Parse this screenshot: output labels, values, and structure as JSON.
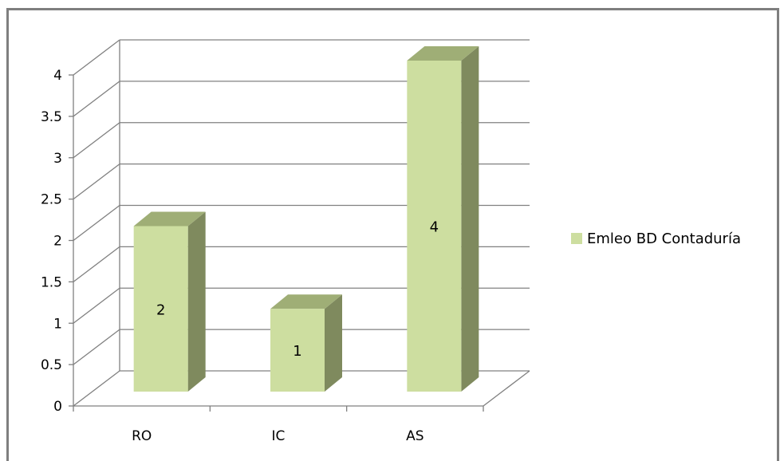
{
  "chart_data": {
    "type": "bar",
    "style": "3d-column",
    "categories": [
      "RO",
      "IC",
      "AS"
    ],
    "series": [
      {
        "name": "Emleo BD Contaduría",
        "values": [
          2,
          1,
          4
        ]
      }
    ],
    "data_labels": [
      "2",
      "1",
      "4"
    ],
    "ylim": [
      0,
      4
    ],
    "yticks": [
      "0",
      "0.5",
      "1",
      "1.5",
      "2",
      "2.5",
      "3",
      "3.5",
      "4"
    ],
    "grid": true,
    "legend_position": "right",
    "colors": {
      "bar_front": "#cddea0",
      "bar_side": "#7f8a5e",
      "bar_top": "#9fae76",
      "gridline": "#808080",
      "border": "#7f7f7f"
    }
  }
}
